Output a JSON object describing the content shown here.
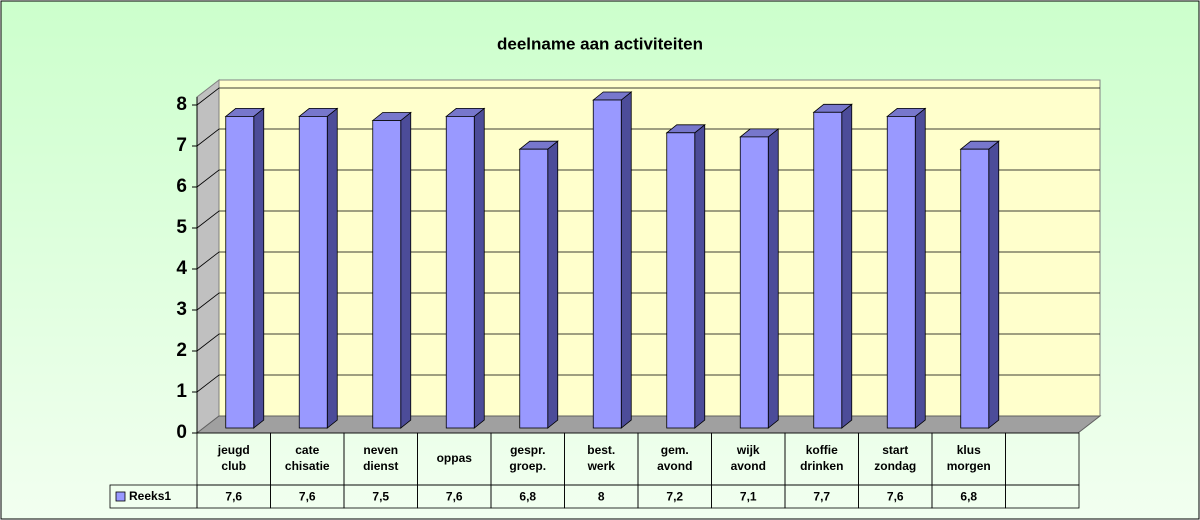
{
  "chart_data": {
    "type": "bar3d",
    "title": "deelname aan activiteiten",
    "categories": [
      "jeugd club",
      "cate chisatie",
      "neven dienst",
      "oppas",
      "gespr. groep.",
      "best. werk",
      "gem. avond",
      "wijk avond",
      "koffie drinken",
      "start zondag",
      "klus morgen"
    ],
    "series": [
      {
        "name": "Reeks1",
        "color": "#9999ff",
        "values": [
          7.6,
          7.6,
          7.5,
          7.6,
          6.8,
          8,
          7.2,
          7.1,
          7.7,
          7.6,
          6.8
        ],
        "value_labels": [
          "7,6",
          "7,6",
          "7,5",
          "7,6",
          "6,8",
          "8",
          "7,2",
          "7,1",
          "7,7",
          "7,6",
          "6,8"
        ]
      }
    ],
    "ylim": [
      0,
      8
    ],
    "yticks": [
      0,
      1,
      2,
      3,
      4,
      5,
      6,
      7,
      8
    ],
    "grid": true
  }
}
